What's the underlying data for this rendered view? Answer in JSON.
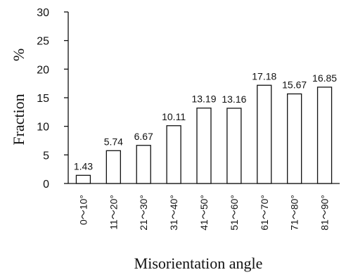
{
  "chart_data": {
    "type": "bar",
    "categories": [
      "0～10°",
      "11～20°",
      "21～30°",
      "31～40°",
      "41～50°",
      "51～60°",
      "61～70°",
      "71～80°",
      "81～90°"
    ],
    "values": [
      1.43,
      5.74,
      6.67,
      10.11,
      13.19,
      13.16,
      17.18,
      15.67,
      16.85
    ],
    "data_labels": [
      "1.43",
      "5.74",
      "6.67",
      "10.11",
      "13.19",
      "13.16",
      "17.18",
      "15.67",
      "16.85"
    ],
    "title": "",
    "xlabel": "Misorientation angle",
    "ylabel": "Fraction",
    "ylabel_unit": "%",
    "ylim": [
      0,
      30
    ],
    "yticks": [
      "0",
      "5",
      "10",
      "15",
      "20",
      "25",
      "30"
    ],
    "grid": false,
    "legend": "none"
  }
}
